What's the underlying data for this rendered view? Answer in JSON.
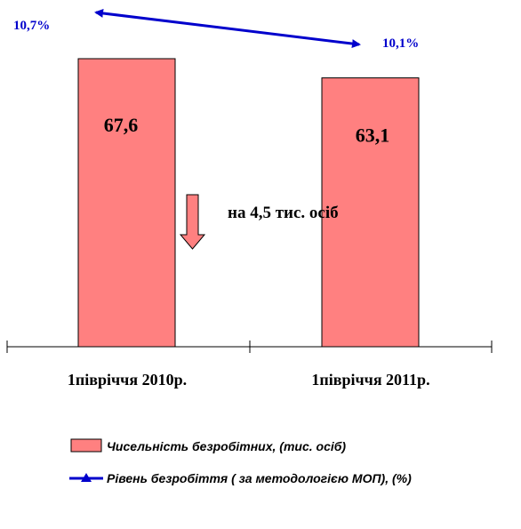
{
  "chart_data": {
    "type": "bar",
    "categories": [
      "1півріччя 2010р.",
      "1півріччя 2011р."
    ],
    "series": [
      {
        "name": "Чисельність безробітних, (тис. осіб)",
        "values": [
          67.6,
          63.1
        ],
        "value_labels": [
          "67,6",
          "63,1"
        ],
        "color": "#ff8080"
      },
      {
        "name": "Рівень безробіття ( за методологією МОП), (%)",
        "values": [
          10.7,
          10.1
        ],
        "value_labels": [
          "10,7%",
          "10,1%"
        ],
        "color": "#0000cc"
      }
    ],
    "annotation": "на 4,5 тис. осіб",
    "legend_position": "bottom",
    "grid": false
  }
}
